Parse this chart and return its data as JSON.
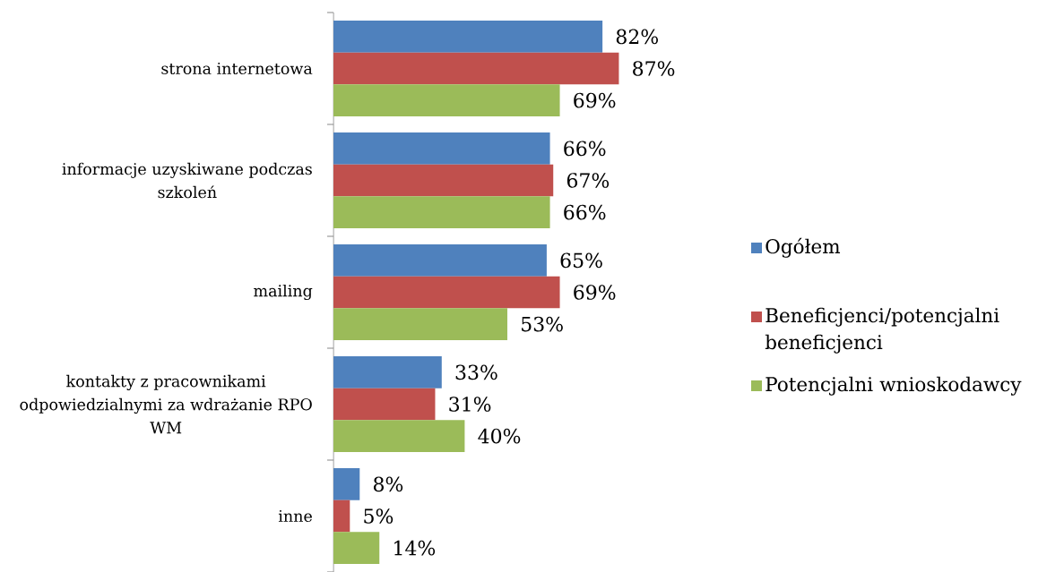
{
  "chart_data": {
    "type": "bar",
    "orientation": "horizontal",
    "categories": [
      "strona internetowa",
      "informacje uzyskiwane podczas szkoleń",
      "mailing",
      "kontakty z pracownikami odpowiedzialnymi za wdrażanie RPO WM",
      "inne"
    ],
    "series": [
      {
        "name": "Ogółem",
        "color": "#4f81bd",
        "values": [
          82,
          66,
          65,
          33,
          8
        ],
        "value_labels": [
          "82%",
          "66%",
          "65%",
          "33%",
          "8%"
        ]
      },
      {
        "name": "Beneficjenci/potencjalni beneficjenci",
        "color": "#c0504d",
        "values": [
          87,
          67,
          69,
          31,
          5
        ],
        "value_labels": [
          "87%",
          "67%",
          "69%",
          "31%",
          "5%"
        ]
      },
      {
        "name": "Potencjalni wnioskodawcy",
        "color": "#9bbb59",
        "values": [
          69,
          66,
          53,
          40,
          14
        ],
        "value_labels": [
          "69%",
          "66%",
          "53%",
          "40%",
          "14%"
        ]
      }
    ],
    "legend": "right",
    "tick_labels": "y"
  }
}
